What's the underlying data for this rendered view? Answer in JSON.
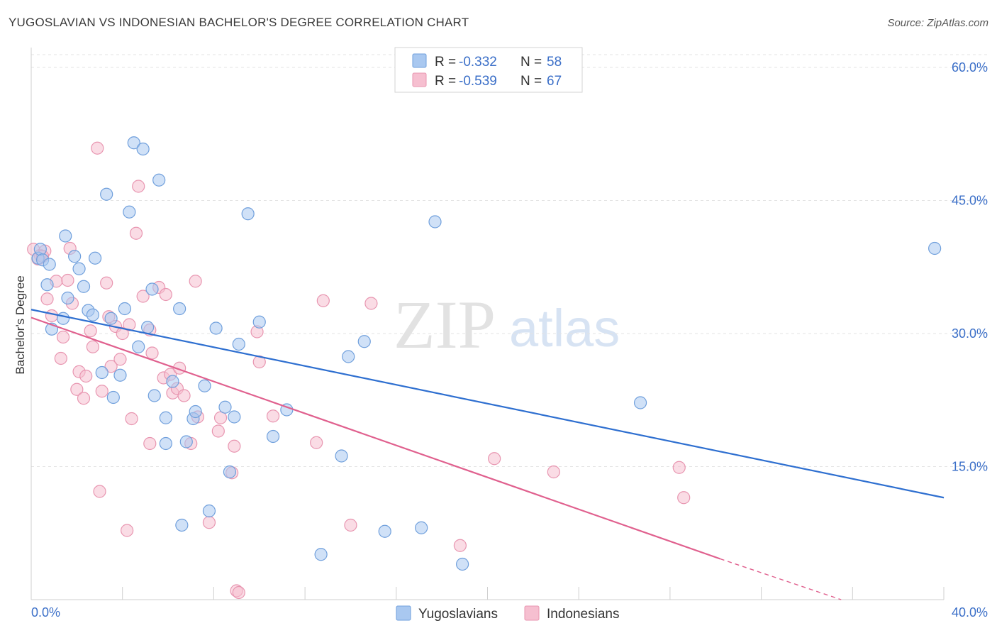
{
  "title": "YUGOSLAVIAN VS INDONESIAN BACHELOR'S DEGREE CORRELATION CHART",
  "source": "Source: ZipAtlas.com",
  "watermark": {
    "zip": "ZIP",
    "atlas": "atlas"
  },
  "colors": {
    "yugo_fill": "#a9c8f0",
    "yugo_stroke": "#6f9fdc",
    "yugo_line": "#2e6fd0",
    "indo_fill": "#f6bfd0",
    "indo_stroke": "#e895b0",
    "indo_line": "#e0608e",
    "grid": "#e3e3e3",
    "tick_text": "#3b6fc8"
  },
  "stats": [
    {
      "r_label": "R =",
      "r_value": "-0.332",
      "n_label": "N =",
      "n_value": "58"
    },
    {
      "r_label": "R =",
      "r_value": "-0.539",
      "n_label": "N =",
      "n_value": "67"
    }
  ],
  "chart_data": {
    "type": "scatter",
    "title": "YUGOSLAVIAN VS INDONESIAN BACHELOR'S DEGREE CORRELATION CHART",
    "xlabel": "",
    "ylabel": "Bachelor's Degree",
    "xlim": [
      0,
      40
    ],
    "ylim": [
      0,
      62
    ],
    "x_tick_labels": [
      "0.0%",
      "40.0%"
    ],
    "y_ticks": [
      15,
      30,
      45,
      60
    ],
    "y_tick_labels": [
      "15.0%",
      "30.0%",
      "45.0%",
      "60.0%"
    ],
    "grid": true,
    "legend_position": "bottom-center",
    "series": [
      {
        "name": "Yugoslavians",
        "color": "#a9c8f0",
        "trend": {
          "x": [
            0,
            40
          ],
          "y": [
            32.7,
            11.5
          ]
        },
        "points": [
          [
            0.3,
            38.5
          ],
          [
            0.4,
            39.5
          ],
          [
            0.5,
            38.3
          ],
          [
            0.7,
            35.5
          ],
          [
            0.8,
            37.8
          ],
          [
            0.9,
            30.5
          ],
          [
            1.4,
            31.7
          ],
          [
            1.5,
            41.0
          ],
          [
            1.6,
            34.0
          ],
          [
            1.9,
            38.7
          ],
          [
            2.1,
            37.3
          ],
          [
            2.3,
            35.3
          ],
          [
            2.5,
            32.6
          ],
          [
            2.7,
            32.1
          ],
          [
            2.8,
            38.5
          ],
          [
            3.1,
            25.6
          ],
          [
            3.3,
            45.7
          ],
          [
            3.5,
            31.7
          ],
          [
            3.6,
            22.8
          ],
          [
            3.9,
            25.3
          ],
          [
            4.1,
            32.8
          ],
          [
            4.3,
            43.7
          ],
          [
            4.5,
            51.5
          ],
          [
            4.7,
            28.5
          ],
          [
            4.9,
            50.8
          ],
          [
            5.1,
            30.7
          ],
          [
            5.3,
            35.0
          ],
          [
            5.4,
            23.0
          ],
          [
            5.6,
            47.3
          ],
          [
            5.9,
            17.6
          ],
          [
            5.9,
            20.5
          ],
          [
            6.2,
            24.6
          ],
          [
            6.5,
            32.8
          ],
          [
            6.6,
            8.4
          ],
          [
            6.8,
            17.8
          ],
          [
            7.1,
            20.4
          ],
          [
            7.2,
            21.2
          ],
          [
            7.6,
            24.1
          ],
          [
            7.8,
            10.0
          ],
          [
            8.1,
            30.6
          ],
          [
            8.5,
            21.7
          ],
          [
            8.7,
            14.4
          ],
          [
            8.9,
            20.6
          ],
          [
            9.1,
            28.8
          ],
          [
            9.5,
            43.5
          ],
          [
            10.0,
            31.3
          ],
          [
            10.6,
            18.4
          ],
          [
            11.2,
            21.4
          ],
          [
            12.7,
            5.1
          ],
          [
            13.6,
            16.2
          ],
          [
            13.9,
            27.4
          ],
          [
            14.6,
            29.1
          ],
          [
            15.5,
            7.7
          ],
          [
            17.1,
            8.1
          ],
          [
            17.7,
            42.6
          ],
          [
            18.9,
            4.0
          ],
          [
            26.7,
            22.2
          ],
          [
            39.6,
            39.6
          ]
        ]
      },
      {
        "name": "Indonesians",
        "color": "#f6bfd0",
        "trend": {
          "x": [
            0,
            30.2
          ],
          "y": [
            31.8,
            4.6
          ]
        },
        "trend_dashed": {
          "x": [
            30.2,
            35.5
          ],
          "y": [
            4.6,
            0.0
          ]
        },
        "points": [
          [
            0.1,
            39.5
          ],
          [
            0.4,
            38.8
          ],
          [
            0.6,
            39.3
          ],
          [
            0.7,
            33.9
          ],
          [
            0.9,
            32.0
          ],
          [
            1.1,
            35.9
          ],
          [
            1.3,
            27.2
          ],
          [
            1.4,
            29.6
          ],
          [
            1.6,
            36.0
          ],
          [
            1.7,
            39.6
          ],
          [
            1.8,
            33.4
          ],
          [
            2.0,
            23.7
          ],
          [
            2.1,
            25.7
          ],
          [
            2.3,
            22.7
          ],
          [
            2.4,
            25.2
          ],
          [
            2.6,
            30.3
          ],
          [
            2.7,
            28.5
          ],
          [
            2.9,
            50.9
          ],
          [
            3.0,
            12.2
          ],
          [
            3.1,
            23.5
          ],
          [
            3.3,
            35.7
          ],
          [
            3.4,
            31.9
          ],
          [
            3.5,
            26.3
          ],
          [
            3.7,
            30.8
          ],
          [
            3.9,
            27.1
          ],
          [
            4.0,
            30.0
          ],
          [
            4.2,
            7.8
          ],
          [
            4.3,
            31.0
          ],
          [
            4.4,
            20.4
          ],
          [
            4.6,
            41.3
          ],
          [
            4.7,
            46.6
          ],
          [
            4.9,
            34.2
          ],
          [
            5.2,
            30.4
          ],
          [
            5.2,
            17.6
          ],
          [
            5.3,
            27.8
          ],
          [
            5.6,
            35.2
          ],
          [
            5.8,
            25.0
          ],
          [
            5.9,
            34.4
          ],
          [
            6.1,
            25.4
          ],
          [
            6.2,
            23.3
          ],
          [
            6.4,
            23.8
          ],
          [
            6.5,
            26.1
          ],
          [
            6.7,
            23.0
          ],
          [
            7.0,
            17.6
          ],
          [
            7.2,
            35.9
          ],
          [
            7.3,
            20.6
          ],
          [
            7.8,
            8.7
          ],
          [
            8.2,
            19.0
          ],
          [
            8.3,
            20.5
          ],
          [
            8.8,
            14.3
          ],
          [
            8.9,
            17.3
          ],
          [
            9.0,
            1.0
          ],
          [
            9.1,
            0.8
          ],
          [
            9.9,
            30.2
          ],
          [
            10.0,
            26.8
          ],
          [
            10.6,
            20.7
          ],
          [
            12.5,
            17.7
          ],
          [
            12.8,
            33.7
          ],
          [
            14.0,
            8.4
          ],
          [
            14.9,
            33.4
          ],
          [
            18.8,
            6.1
          ],
          [
            20.3,
            15.9
          ],
          [
            22.9,
            14.4
          ],
          [
            28.4,
            14.9
          ],
          [
            28.6,
            11.5
          ],
          [
            0.3,
            38.4
          ],
          [
            0.5,
            38.7
          ]
        ]
      }
    ]
  }
}
